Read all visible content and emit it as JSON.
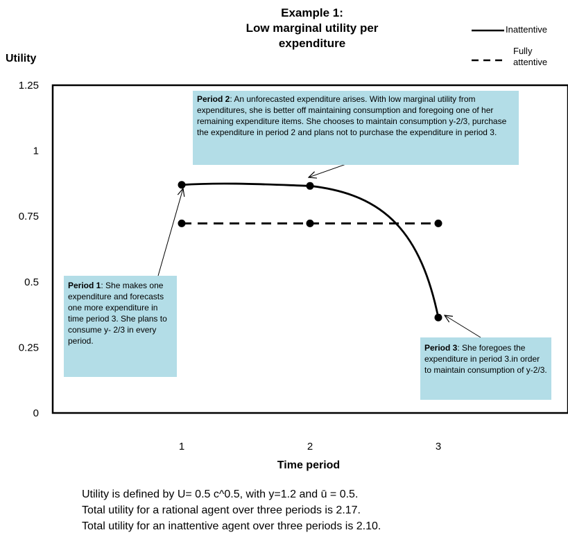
{
  "chart_data": {
    "type": "line",
    "title_line1": "Example 1:",
    "title_line2": "Low marginal utility per",
    "title_line3": "expenditure",
    "ylabel": "Utility",
    "xlabel": "Time period",
    "x": [
      1,
      2,
      3
    ],
    "xticks": [
      "1",
      "2",
      "3"
    ],
    "yticks": [
      "0",
      "0.25",
      "0.5",
      "0.75",
      "1",
      "1.25"
    ],
    "ylim": [
      0,
      1.25
    ],
    "series": [
      {
        "name": "Inattentive",
        "style": "solid",
        "values": [
          0.87,
          0.866,
          0.364
        ]
      },
      {
        "name": "Fully attentive",
        "style": "dashed",
        "values": [
          0.723,
          0.723,
          0.723
        ]
      }
    ],
    "legend": {
      "inattentive": "Inattentive",
      "attentive_line1": "Fully",
      "attentive_line2": "attentive"
    },
    "annotations": {
      "p1": {
        "head": "Period 1",
        "text": ": She makes one expenditure and forecasts one more expenditure in time period 3.   She plans to consume y- 2/3 in every period."
      },
      "p2": {
        "head": "Period 2",
        "text": ": An unforecasted expenditure arises.   With low marginal utility from expenditures, she is better off maintaining consumption and foregoing one of her remaining expenditure items. She chooses to maintain consumption y-2/3, purchase the  expenditure in period 2 and plans not to purchase the expenditure in period 3."
      },
      "p3": {
        "head": "Period 3",
        "text": ": She foregoes the expenditure in period 3.in order to maintain consumption of y-2/3."
      }
    },
    "notes": [
      "Utility is defined by U= 0.5 c^0.5, with y=1.2 and ū = 0.5.",
      "Total utility for a rational agent over three periods is 2.17.",
      "Total utility for an inattentive agent over three periods is 2.10."
    ],
    "colors": {
      "callout": "#b3dde7",
      "line": "#000000"
    }
  }
}
